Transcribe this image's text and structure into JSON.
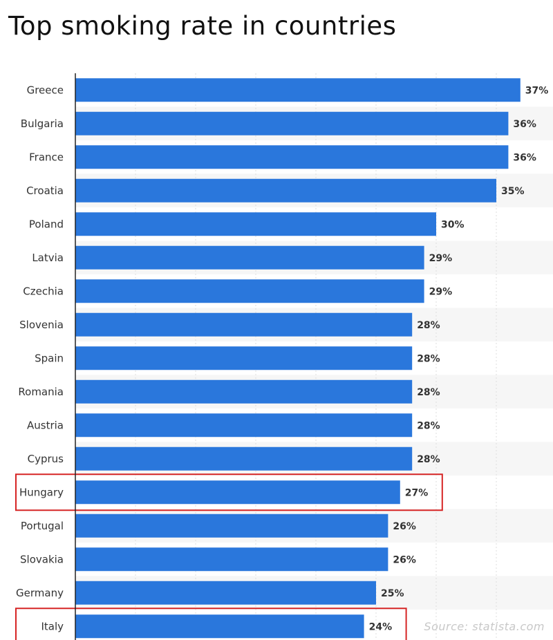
{
  "title": "Top smoking rate in countries",
  "source": "Source:  statista.com",
  "chart_data": {
    "type": "bar",
    "orientation": "horizontal",
    "categories": [
      "Greece",
      "Bulgaria",
      "France",
      "Croatia",
      "Poland",
      "Latvia",
      "Czechia",
      "Slovenia",
      "Spain",
      "Romania",
      "Austria",
      "Cyprus",
      "Hungary",
      "Portugal",
      "Slovakia",
      "Germany",
      "Italy"
    ],
    "values": [
      37,
      36,
      36,
      35,
      30,
      29,
      29,
      28,
      28,
      28,
      28,
      28,
      27,
      26,
      26,
      25,
      24
    ],
    "value_labels": [
      "37%",
      "36%",
      "36%",
      "35%",
      "30%",
      "29%",
      "29%",
      "28%",
      "28%",
      "28%",
      "28%",
      "28%",
      "27%",
      "26%",
      "26%",
      "25%",
      "24%"
    ],
    "xlim": [
      0,
      40
    ],
    "grid": "vertical dashed",
    "bar_color": "#2a77dc",
    "row_stripe_color": "#f6f6f6",
    "highlighted": [
      "Hungary",
      "Italy"
    ],
    "highlight_color": "#d62424"
  }
}
